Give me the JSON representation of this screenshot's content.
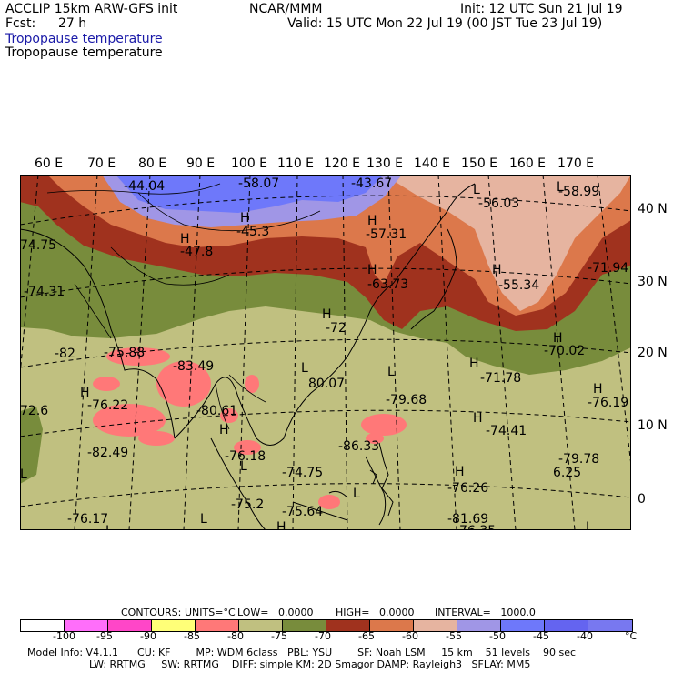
{
  "header": {
    "model": "ACCLIP 15km ARW-GFS init",
    "fcst_label": "Fcst:",
    "fcst_value": "27 h",
    "center": "NCAR/MMM",
    "init": "Init: 12 UTC Sun 21 Jul 19",
    "valid": "Valid: 15 UTC Mon 22 Jul 19 (00 JST Tue 23 Jul 19)",
    "field_blue": "Tropopause temperature",
    "field_black": "Tropopause temperature"
  },
  "lon_labels": [
    "60 E",
    "70 E",
    "80 E",
    "90 E",
    "100 E",
    "110 E",
    "120 E",
    "130 E",
    "140 E",
    "150 E",
    "160 E",
    "170 E"
  ],
  "lat_labels": [
    "40 N",
    "30 N",
    "20 N",
    "10 N",
    "0"
  ],
  "map_labels": [
    {
      "t": "-44.04"
    },
    {
      "t": "-58.07"
    },
    {
      "t": "-43.67"
    },
    {
      "t": "L"
    },
    {
      "t": "-56.03"
    },
    {
      "t": "L"
    },
    {
      "t": "-58.99"
    },
    {
      "t": "H"
    },
    {
      "t": "-45.3"
    },
    {
      "t": "H"
    },
    {
      "t": "-47.8"
    },
    {
      "t": "H"
    },
    {
      "t": "-57.31"
    },
    {
      "t": "74.75"
    },
    {
      "t": "H"
    },
    {
      "t": "-55.34"
    },
    {
      "t": "-71.94"
    },
    {
      "t": "-74.31"
    },
    {
      "t": "H"
    },
    {
      "t": "-63.73"
    },
    {
      "t": "H"
    },
    {
      "t": "-72"
    },
    {
      "t": "H"
    },
    {
      "t": "-70.02"
    },
    {
      "t": "-82"
    },
    {
      "t": "-75.88"
    },
    {
      "t": "-83.49"
    },
    {
      "t": "H"
    },
    {
      "t": "-71.78"
    },
    {
      "t": "L"
    },
    {
      "t": "80.07"
    },
    {
      "t": "L"
    },
    {
      "t": "-79.68"
    },
    {
      "t": "H"
    },
    {
      "t": "-76.22"
    },
    {
      "t": "H"
    },
    {
      "t": "-76.19"
    },
    {
      "t": "72.6"
    },
    {
      "t": "-80.61"
    },
    {
      "t": "H"
    },
    {
      "t": "H"
    },
    {
      "t": "-74.41"
    },
    {
      "t": "-82.49"
    },
    {
      "t": "-76.18"
    },
    {
      "t": "-86.33"
    },
    {
      "t": "L"
    },
    {
      "t": "H"
    },
    {
      "t": "-79.78"
    },
    {
      "t": "6.25"
    },
    {
      "t": "L"
    },
    {
      "t": "-74.75"
    },
    {
      "t": "-76.26"
    },
    {
      "t": "L"
    },
    {
      "t": "-75.2"
    },
    {
      "t": "L"
    },
    {
      "t": "-75.64"
    },
    {
      "t": "H"
    },
    {
      "t": "-76.17"
    },
    {
      "t": "L"
    },
    {
      "t": "-81.69"
    },
    {
      "t": "-76.35"
    },
    {
      "t": "L"
    }
  ],
  "contour_info": {
    "contours": "CONTOURS:",
    "units": "UNITS=°C",
    "low": "LOW=   0.0000",
    "high": "HIGH=   0.0000",
    "interval": "INTERVAL=   1000.0"
  },
  "colorbar": {
    "colors": [
      "#ffffff",
      "#ff6efa",
      "#ff46c8",
      "#ffff78",
      "#ff7878",
      "#c0c080",
      "#788c3c",
      "#a0321e",
      "#dc784b",
      "#e6b4a0",
      "#a096e6",
      "#6e78fa",
      "#6464f0",
      "#7878f0"
    ],
    "ticks": [
      "-100",
      "-95",
      "-90",
      "-85",
      "-80",
      "-75",
      "-70",
      "-65",
      "-60",
      "-55",
      "-50",
      "-45",
      "-40",
      "°C"
    ]
  },
  "model_info": {
    "line1": "Model Info: V4.1.1      CU: KF        MP: WDM 6class   PBL: YSU        SF: Noah LSM     15 km    51 levels    90 sec",
    "line2": "LW: RRTMG     SW: RRTMG    DIFF: simple KM: 2D Smagor DAMP: Rayleigh3   SFLAY: MM5"
  },
  "map_colors": {
    "tropics": "#c0c080",
    "olive": "#788c3c",
    "red_brown": "#a0321e",
    "orange": "#dc784b",
    "pink_light": "#e6b4a0",
    "lavender": "#a096e6",
    "blue": "#6e78fa",
    "cold_spots": "#ff7878"
  }
}
